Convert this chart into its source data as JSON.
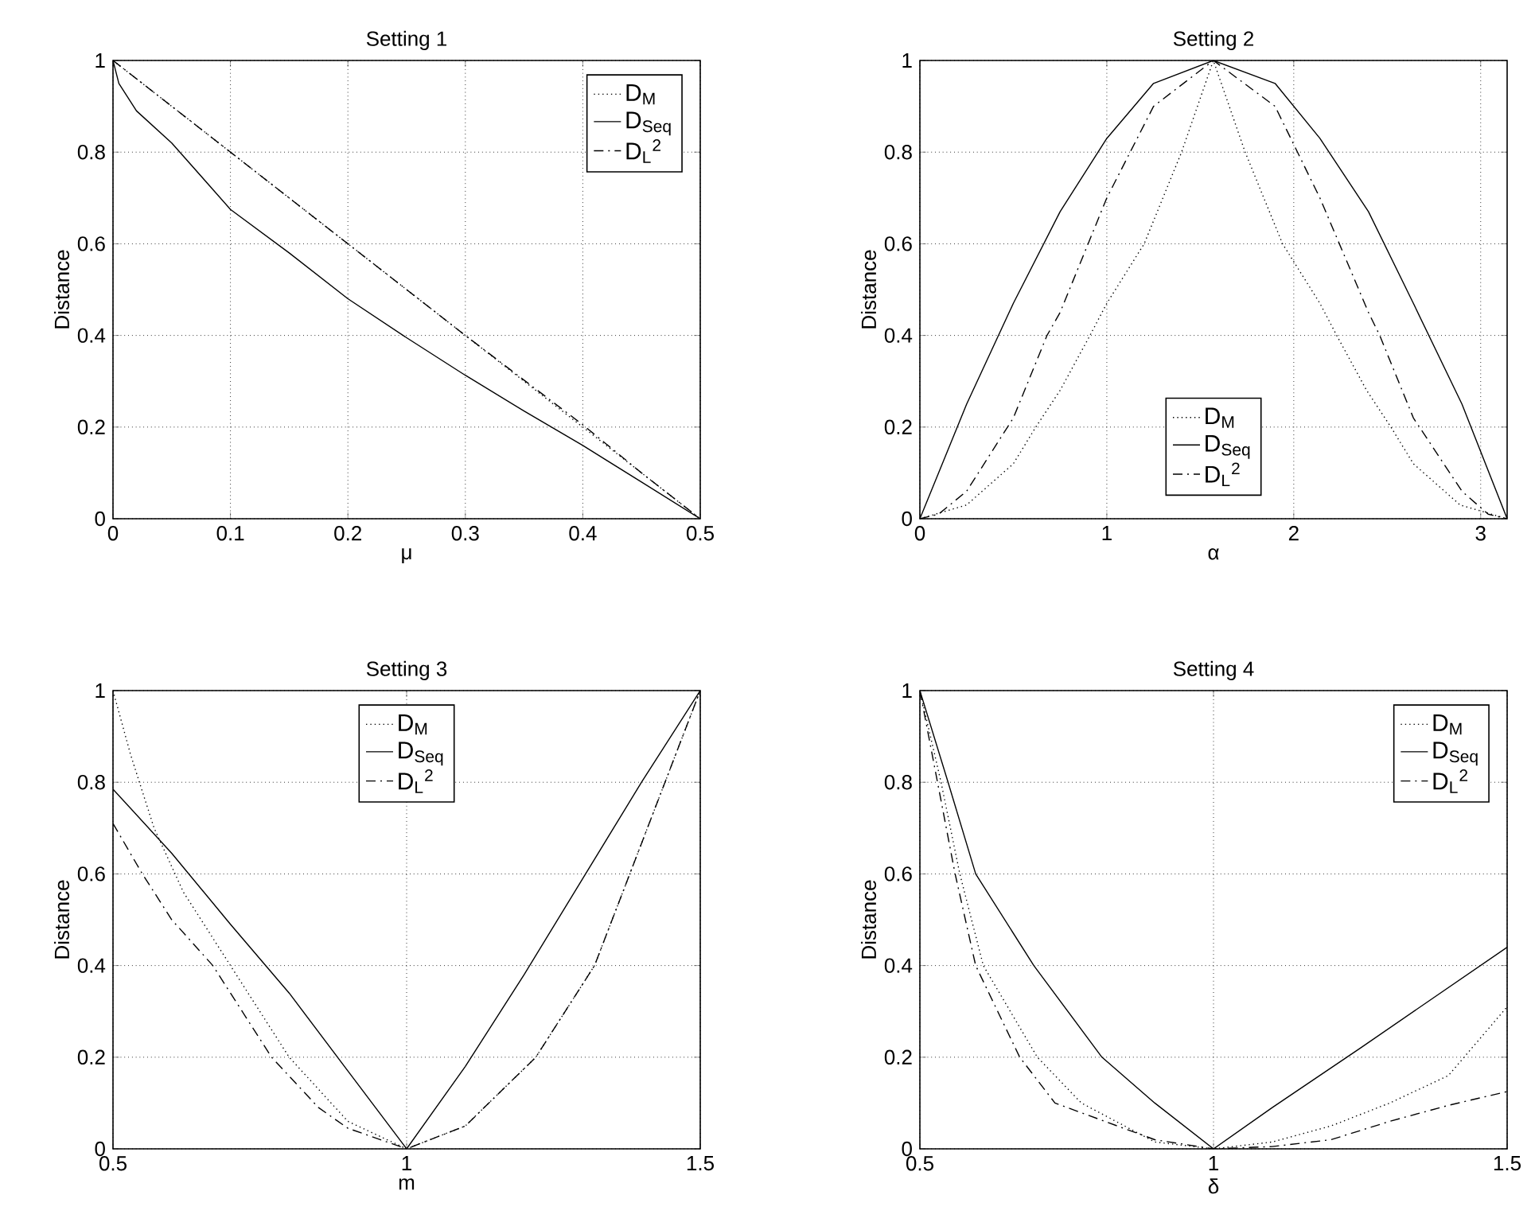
{
  "chart_data": [
    {
      "type": "line",
      "title": "Setting 1",
      "xlabel": "μ",
      "ylabel": "Distance",
      "xlim": [
        0,
        0.5
      ],
      "ylim": [
        0,
        1
      ],
      "xticks": [
        0,
        0.1,
        0.2,
        0.3,
        0.4,
        0.5
      ],
      "yticks": [
        0,
        0.2,
        0.4,
        0.6,
        0.8,
        1
      ],
      "grid": true,
      "legend": "top right",
      "series": [
        {
          "name": "D$_{M}$",
          "color": "#000000",
          "line_style": "dotted",
          "x": [
            0,
            0.1,
            0.2,
            0.3,
            0.4,
            0.5
          ],
          "values": [
            1,
            0.8,
            0.6,
            0.4,
            0.2,
            0
          ]
        },
        {
          "name": "D$_{Seq}$",
          "color": "#000000",
          "line_style": "solid",
          "x": [
            0,
            0.005,
            0.01,
            0.02,
            0.05,
            0.1,
            0.15,
            0.2,
            0.25,
            0.3,
            0.35,
            0.4,
            0.45,
            0.5
          ],
          "values": [
            1,
            0.95,
            0.93,
            0.89,
            0.82,
            0.675,
            0.58,
            0.48,
            0.395,
            0.313,
            0.235,
            0.16,
            0.08,
            0
          ]
        },
        {
          "name": "D$_{L}$$^{2}$",
          "color": "#000000",
          "line_style": "dashed",
          "x": [
            0,
            0.1,
            0.2,
            0.3,
            0.4,
            0.45,
            0.5
          ],
          "values": [
            1,
            0.8,
            0.6,
            0.4,
            0.205,
            0.1,
            0
          ]
        }
      ]
    },
    {
      "type": "line",
      "title": "Setting 2",
      "xlabel": "α",
      "ylabel": "Distance",
      "xlim": [
        0,
        3.1416
      ],
      "ylim": [
        0,
        1
      ],
      "xticks": [
        0,
        1,
        2,
        3
      ],
      "yticks": [
        0,
        0.2,
        0.4,
        0.6,
        0.8,
        1
      ],
      "grid": true,
      "legend": "bottom",
      "series": [
        {
          "name": "D$_{M}$",
          "color": "#000000",
          "line_style": "dotted",
          "x": [
            0,
            0.25,
            0.5,
            0.62,
            0.75,
            0.91,
            1,
            1.2,
            1.4,
            1.57,
            1.74,
            1.94,
            2.14,
            2.23,
            2.39,
            2.52,
            2.64,
            2.89,
            3.1416
          ],
          "values": [
            0,
            0.03,
            0.12,
            0.2,
            0.28,
            0.4,
            0.47,
            0.6,
            0.8,
            1,
            0.8,
            0.6,
            0.47,
            0.4,
            0.28,
            0.2,
            0.12,
            0.03,
            0
          ]
        },
        {
          "name": "D$_{Seq}$",
          "color": "#000000",
          "line_style": "solid",
          "x": [
            0,
            0.25,
            0.5,
            0.75,
            1,
            1.25,
            1.57,
            1.9,
            2.14,
            2.4,
            2.64,
            2.9,
            3.1416
          ],
          "values": [
            0,
            0.25,
            0.47,
            0.67,
            0.83,
            0.95,
            1,
            0.95,
            0.83,
            0.67,
            0.47,
            0.25,
            0
          ]
        },
        {
          "name": "D$_{L}$$^{2}$",
          "color": "#000000",
          "line_style": "dashed",
          "x": [
            0,
            0.1,
            0.25,
            0.5,
            0.68,
            0.75,
            1,
            1.25,
            1.57,
            1.9,
            2.14,
            2.4,
            2.46,
            2.64,
            2.9,
            3.04,
            3.1416
          ],
          "values": [
            0,
            0.01,
            0.06,
            0.22,
            0.4,
            0.45,
            0.7,
            0.9,
            1,
            0.9,
            0.7,
            0.45,
            0.4,
            0.22,
            0.06,
            0.01,
            0
          ]
        }
      ]
    },
    {
      "type": "line",
      "title": "Setting 3",
      "xlabel": "m",
      "ylabel": "Distance",
      "xlim": [
        0.5,
        1.5
      ],
      "ylim": [
        0,
        1
      ],
      "xticks": [
        0.5,
        1,
        1.5
      ],
      "yticks": [
        0,
        0.2,
        0.4,
        0.6,
        0.8,
        1
      ],
      "grid": true,
      "legend": "top",
      "series": [
        {
          "name": "D$_{M}$",
          "color": "#000000",
          "line_style": "dotted",
          "x": [
            0.5,
            0.53,
            0.57,
            0.62,
            0.7,
            0.8,
            0.9,
            1,
            1.1,
            1.22,
            1.32,
            1.38,
            1.44,
            1.5
          ],
          "values": [
            1,
            0.86,
            0.7,
            0.56,
            0.4,
            0.2,
            0.06,
            0,
            0.05,
            0.2,
            0.4,
            0.6,
            0.8,
            1
          ]
        },
        {
          "name": "D$_{Seq}$",
          "color": "#000000",
          "line_style": "solid",
          "x": [
            0.5,
            0.6,
            0.7,
            0.8,
            0.9,
            1,
            1.1,
            1.2,
            1.3,
            1.4,
            1.5
          ],
          "values": [
            0.785,
            0.645,
            0.49,
            0.34,
            0.17,
            0,
            0.18,
            0.38,
            0.59,
            0.8,
            1
          ]
        },
        {
          "name": "D$_{L}$$^{2}$",
          "color": "#000000",
          "line_style": "dashed",
          "x": [
            0.5,
            0.55,
            0.6,
            0.67,
            0.7,
            0.77,
            0.85,
            0.9,
            1,
            1.1,
            1.22,
            1.32,
            1.38,
            1.44,
            1.5
          ],
          "values": [
            0.71,
            0.6,
            0.5,
            0.4,
            0.34,
            0.2,
            0.09,
            0.045,
            0,
            0.05,
            0.2,
            0.4,
            0.6,
            0.8,
            1
          ]
        }
      ]
    },
    {
      "type": "line",
      "title": "Setting 4",
      "xlabel": "δ",
      "ylabel": "Distance",
      "xlim": [
        0.5,
        1.5
      ],
      "ylim": [
        0,
        1
      ],
      "xticks": [
        0.5,
        1,
        1.5
      ],
      "yticks": [
        0,
        0.2,
        0.4,
        0.6,
        0.8,
        1
      ],
      "grid": true,
      "legend": "top right",
      "series": [
        {
          "name": "D$_{M}$",
          "color": "#000000",
          "line_style": "dotted",
          "x": [
            0.5,
            0.536,
            0.568,
            0.608,
            0.7,
            0.775,
            0.9,
            1,
            1.1,
            1.2,
            1.3,
            1.4,
            1.5
          ],
          "values": [
            1,
            0.8,
            0.6,
            0.4,
            0.2,
            0.1,
            0.015,
            0,
            0.015,
            0.05,
            0.1,
            0.16,
            0.31
          ]
        },
        {
          "name": "D$_{Seq}$",
          "color": "#000000",
          "line_style": "solid",
          "x": [
            0.5,
            0.548,
            0.595,
            0.694,
            0.81,
            0.9,
            1,
            1.1,
            1.25,
            1.5
          ],
          "values": [
            1,
            0.8,
            0.6,
            0.4,
            0.2,
            0.1,
            0,
            0.09,
            0.22,
            0.44
          ]
        },
        {
          "name": "D$_{L}$$^{2}$",
          "color": "#000000",
          "line_style": "dashed",
          "x": [
            0.5,
            0.53,
            0.56,
            0.595,
            0.67,
            0.73,
            0.9,
            1,
            1.1,
            1.2,
            1.3,
            1.4,
            1.5
          ],
          "values": [
            1,
            0.8,
            0.6,
            0.4,
            0.2,
            0.1,
            0.02,
            0,
            0.005,
            0.02,
            0.06,
            0.095,
            0.125
          ]
        }
      ]
    }
  ]
}
